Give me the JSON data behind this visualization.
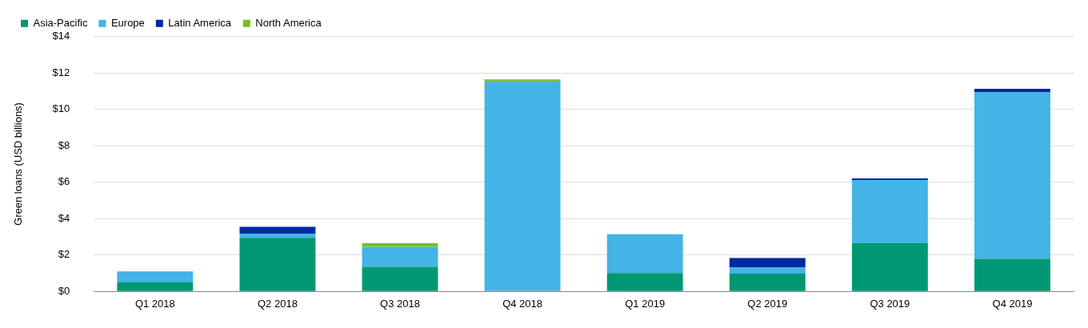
{
  "chart_data": {
    "type": "bar",
    "stacked": true,
    "ylabel": "Green loans (USD billions)",
    "categories": [
      "Q1 2018",
      "Q2 2018",
      "Q3 2018",
      "Q4 2018",
      "Q1 2019",
      "Q2 2019",
      "Q3 2019",
      "Q4 2019"
    ],
    "series": [
      {
        "name": "Asia-Pacific",
        "color": "#009873",
        "values": [
          0.49,
          2.94,
          1.35,
          0,
          1.01,
          0.98,
          2.66,
          1.79
        ]
      },
      {
        "name": "Europe",
        "color": "#43b4e5",
        "values": [
          0.61,
          0.24,
          1.1,
          11.54,
          2.13,
          0.35,
          3.46,
          9.15
        ]
      },
      {
        "name": "Latin America",
        "color": "#0029a0",
        "values": [
          0,
          0.37,
          0,
          0,
          0,
          0.5,
          0.09,
          0.19
        ]
      },
      {
        "name": "North America",
        "color": "#78be20",
        "values": [
          0,
          0,
          0.2,
          0.11,
          0,
          0,
          0,
          0
        ]
      }
    ],
    "ylim": [
      0,
      14
    ],
    "yticks": [
      {
        "value": 0,
        "label": "$0"
      },
      {
        "value": 2,
        "label": "$2"
      },
      {
        "value": 4,
        "label": "$4"
      },
      {
        "value": 6,
        "label": "$6"
      },
      {
        "value": 8,
        "label": "$8"
      },
      {
        "value": 10,
        "label": "$10"
      },
      {
        "value": 12,
        "label": "$12"
      },
      {
        "value": 14,
        "label": "$14"
      }
    ],
    "grid": "y",
    "legend": "top left"
  }
}
